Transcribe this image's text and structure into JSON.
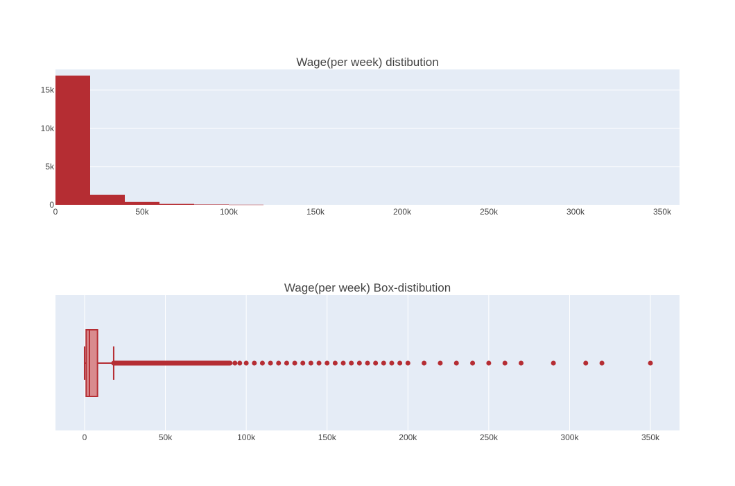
{
  "colors": {
    "bar": "#b52d33",
    "box_fill": "#d98b8e",
    "plot_bg": "#e5ecf6",
    "grid": "#ffffff",
    "text": "#444444"
  },
  "chart_data": [
    {
      "type": "bar",
      "title": "Wage(per week) distibution",
      "grid": true,
      "bin_width": 20000,
      "bins": [
        {
          "x0": 0,
          "x1": 20000,
          "count": 16900
        },
        {
          "x0": 20000,
          "x1": 40000,
          "count": 1300
        },
        {
          "x0": 40000,
          "x1": 60000,
          "count": 380
        },
        {
          "x0": 60000,
          "x1": 80000,
          "count": 120
        },
        {
          "x0": 80000,
          "x1": 100000,
          "count": 50
        },
        {
          "x0": 100000,
          "x1": 120000,
          "count": 20
        }
      ],
      "xlim": [
        0,
        360000
      ],
      "ylim": [
        0,
        17700
      ],
      "xticks": [
        0,
        50000,
        100000,
        150000,
        200000,
        250000,
        300000,
        350000
      ],
      "xtick_labels": [
        "0",
        "50k",
        "100k",
        "150k",
        "200k",
        "250k",
        "300k",
        "350k"
      ],
      "yticks": [
        0,
        5000,
        10000,
        15000
      ],
      "ytick_labels": [
        "0",
        "5k",
        "10k",
        "15k"
      ]
    },
    {
      "type": "box",
      "title": "Wage(per week) Box-distibution",
      "grid": true,
      "orientation": "horizontal",
      "min": 0,
      "q1": 1000,
      "median": 3000,
      "q3": 8000,
      "upper_fence": 18000,
      "dense_outlier_range": [
        18000,
        90000
      ],
      "outliers": [
        93000,
        96000,
        100000,
        105000,
        110000,
        115000,
        120000,
        125000,
        130000,
        135000,
        140000,
        145000,
        150000,
        155000,
        160000,
        165000,
        170000,
        175000,
        180000,
        185000,
        190000,
        195000,
        200000,
        210000,
        220000,
        230000,
        240000,
        250000,
        260000,
        270000,
        290000,
        310000,
        320000,
        350000
      ],
      "xlim": [
        -18000,
        368000
      ],
      "xticks": [
        0,
        50000,
        100000,
        150000,
        200000,
        250000,
        300000,
        350000
      ],
      "xtick_labels": [
        "0",
        "50k",
        "100k",
        "150k",
        "200k",
        "250k",
        "300k",
        "350k"
      ]
    }
  ]
}
